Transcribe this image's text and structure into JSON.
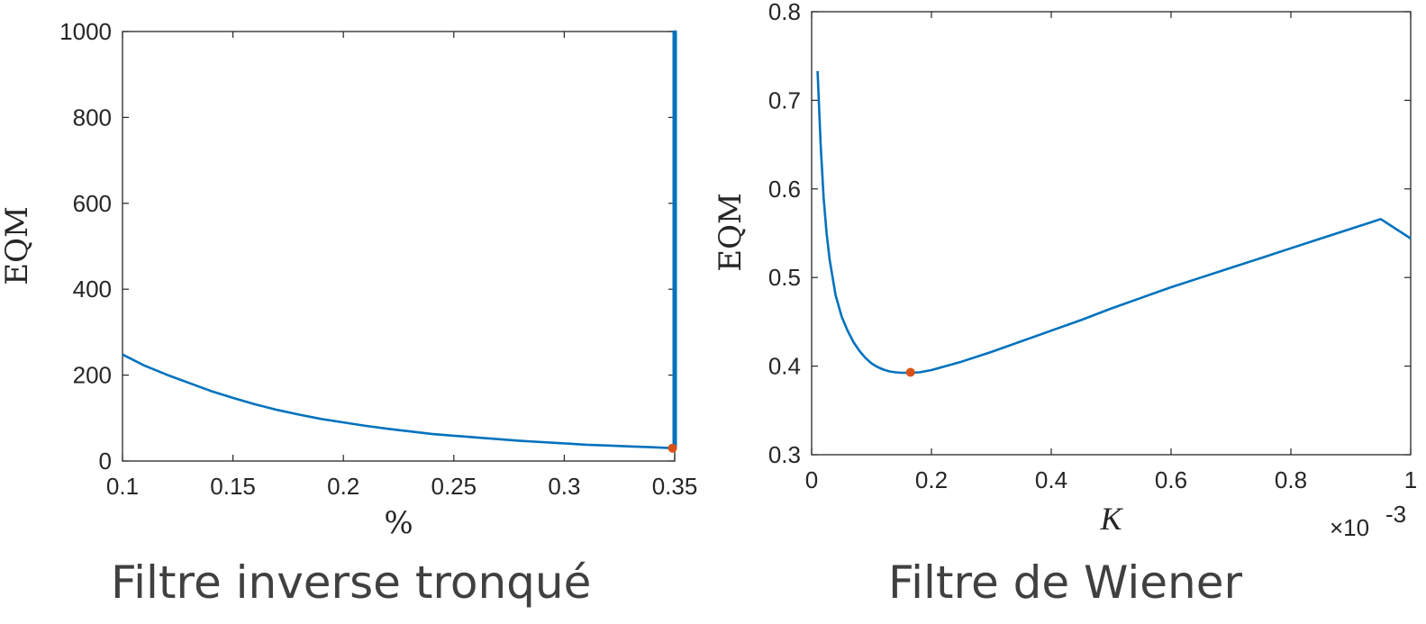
{
  "colors": {
    "line": "#0072BD",
    "marker": "#D95319",
    "axis": "#262626",
    "caption": "#404040"
  },
  "captions": {
    "left": "Filtre inverse tronqué",
    "right": "Filtre de Wiener"
  },
  "chart_data": [
    {
      "type": "line",
      "xlabel": "%",
      "ylabel": "EQM",
      "xlim": [
        0.1,
        0.35
      ],
      "ylim": [
        0,
        1000
      ],
      "xticks": [
        0.1,
        0.15,
        0.2,
        0.25,
        0.3,
        0.35
      ],
      "xtick_labels": [
        "0.1",
        "0.15",
        "0.2",
        "0.25",
        "0.3",
        "0.35"
      ],
      "yticks": [
        0,
        200,
        400,
        600,
        800,
        1000
      ],
      "ytick_labels": [
        "0",
        "200",
        "400",
        "600",
        "800",
        "1000"
      ],
      "series": [
        {
          "x": [
            0.1,
            0.11,
            0.12,
            0.13,
            0.14,
            0.15,
            0.16,
            0.17,
            0.18,
            0.19,
            0.2,
            0.21,
            0.22,
            0.23,
            0.24,
            0.25,
            0.26,
            0.27,
            0.28,
            0.29,
            0.3,
            0.31,
            0.32,
            0.33,
            0.34,
            0.349,
            0.3495,
            0.3495,
            0.3505,
            0.3505
          ],
          "y": [
            248,
            222,
            201,
            182,
            163,
            147,
            132,
            119,
            108,
            98,
            90,
            82,
            75,
            69,
            63,
            59,
            55,
            51,
            47,
            44,
            41,
            38,
            36,
            34,
            32,
            30,
            30,
            1000,
            1000,
            30
          ]
        }
      ],
      "marker": {
        "x": 0.349,
        "y": 30
      },
      "grid": false
    },
    {
      "type": "line",
      "xlabel": "K",
      "ylabel": "EQM",
      "x_exponent_label": "×10",
      "x_exponent_power": "-3",
      "xlim": [
        0,
        1
      ],
      "ylim": [
        0.3,
        0.8
      ],
      "xticks": [
        0,
        0.2,
        0.4,
        0.6,
        0.8,
        1
      ],
      "xtick_labels": [
        "0",
        "0.2",
        "0.4",
        "0.6",
        "0.8",
        "1"
      ],
      "yticks": [
        0.3,
        0.4,
        0.5,
        0.6,
        0.7,
        0.8
      ],
      "ytick_labels": [
        "0.3",
        "0.4",
        "0.5",
        "0.6",
        "0.7",
        "0.8"
      ],
      "series": [
        {
          "x": [
            0.01,
            0.015,
            0.02,
            0.025,
            0.03,
            0.04,
            0.05,
            0.06,
            0.07,
            0.08,
            0.09,
            0.1,
            0.11,
            0.12,
            0.13,
            0.14,
            0.15,
            0.165,
            0.18,
            0.2,
            0.25,
            0.3,
            0.35,
            0.4,
            0.45,
            0.5,
            0.55,
            0.6,
            0.65,
            0.7,
            0.75,
            0.8,
            0.85,
            0.9,
            0.95,
            1.0
          ],
          "y": [
            0.733,
            0.65,
            0.59,
            0.55,
            0.52,
            0.48,
            0.456,
            0.44,
            0.427,
            0.417,
            0.409,
            0.403,
            0.399,
            0.396,
            0.394,
            0.393,
            0.3925,
            0.3925,
            0.393,
            0.3955,
            0.405,
            0.416,
            0.428,
            0.44,
            0.452,
            0.465,
            0.477,
            0.489,
            0.5,
            0.511,
            0.522,
            0.533,
            0.544,
            0.555,
            0.566,
            0.544
          ]
        }
      ],
      "marker": {
        "x": 0.165,
        "y": 0.393
      },
      "grid": false
    }
  ]
}
